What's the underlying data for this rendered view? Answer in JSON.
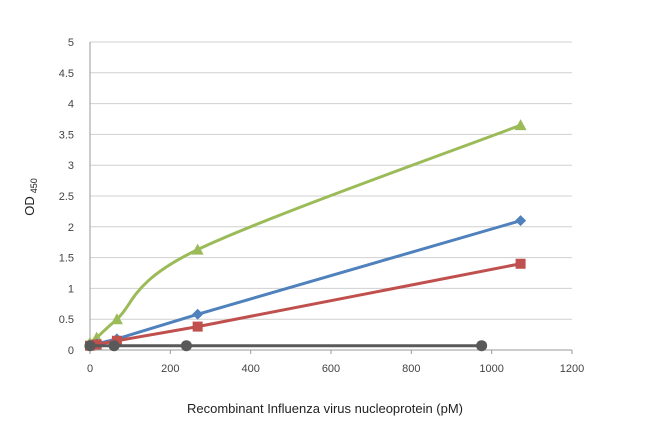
{
  "chart_data": {
    "type": "line",
    "xlabel": "Recombinant Influenza virus nucleoprotein (pM)",
    "ylabel": "OD",
    "ylabel_sub": "450",
    "xlim": [
      0,
      1200
    ],
    "ylim": [
      0,
      5
    ],
    "x_ticks": [
      "0",
      "200",
      "400",
      "600",
      "800",
      "1000",
      "1200"
    ],
    "y_ticks": [
      "0",
      "0.5",
      "1",
      "1.5",
      "2",
      "2.5",
      "3",
      "3.5",
      "4",
      "4.5",
      "5"
    ],
    "grid": true,
    "series": [
      {
        "color": "#9bbb59",
        "marker": "triangle",
        "smooth": true,
        "points": [
          [
            0,
            0.12
          ],
          [
            16.7,
            0.2
          ],
          [
            67,
            0.5
          ],
          [
            268,
            1.63
          ],
          [
            1072,
            3.65
          ]
        ]
      },
      {
        "color": "#4f81bd",
        "marker": "diamond",
        "smooth": false,
        "points": [
          [
            0,
            0.08
          ],
          [
            16.7,
            0.1
          ],
          [
            67,
            0.18
          ],
          [
            268,
            0.58
          ],
          [
            1072,
            2.1
          ]
        ]
      },
      {
        "color": "#c0504d",
        "marker": "square",
        "smooth": false,
        "points": [
          [
            0,
            0.07
          ],
          [
            16.7,
            0.09
          ],
          [
            67,
            0.15
          ],
          [
            268,
            0.38
          ],
          [
            1072,
            1.4
          ]
        ]
      },
      {
        "color": "#595959",
        "marker": "circle",
        "smooth": false,
        "points": [
          [
            0,
            0.07
          ],
          [
            60,
            0.07
          ],
          [
            240,
            0.07
          ],
          [
            975,
            0.07
          ]
        ]
      }
    ]
  }
}
